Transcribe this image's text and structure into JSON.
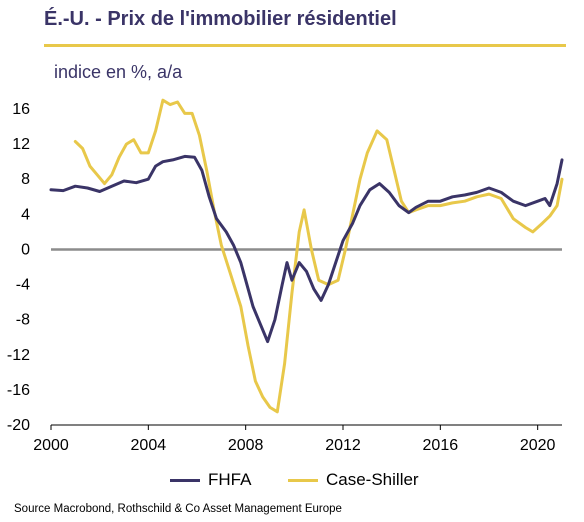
{
  "header": {
    "title": "É.-U. - Prix de l'immobilier résidentiel",
    "subtitle": "indice en %, a/a"
  },
  "source": "Source Macrobond, Rothschild & Co Asset Management Europe",
  "colors": {
    "fhfa": "#3a3467",
    "case_shiller": "#e8c84a",
    "zero_line": "#8c8c8c",
    "rule": "#e8c84a"
  },
  "chart_data": {
    "type": "line",
    "title": "É.-U. - Prix de l'immobilier résidentiel",
    "ylabel": "indice en %, a/a",
    "xlim": [
      2000,
      2021
    ],
    "ylim": [
      -20,
      16
    ],
    "xticks": [
      2000,
      2004,
      2008,
      2012,
      2016,
      2020
    ],
    "yticks": [
      16,
      12,
      8,
      4,
      0,
      -4,
      -8,
      -12,
      -16,
      -20
    ],
    "x_tick_labels": [
      "2000",
      "2004",
      "2008",
      "2012",
      "2016",
      "2020"
    ],
    "y_tick_labels": [
      "16",
      "12",
      "8",
      "4",
      "0",
      "-4",
      "-8",
      "-12",
      "-16",
      "-20"
    ],
    "grid": false,
    "legend_position": "bottom",
    "series": [
      {
        "name": "FHFA",
        "points": [
          [
            2000.0,
            6.8
          ],
          [
            2000.5,
            6.7
          ],
          [
            2001.0,
            7.2
          ],
          [
            2001.5,
            7.0
          ],
          [
            2002.0,
            6.6
          ],
          [
            2002.5,
            7.2
          ],
          [
            2003.0,
            7.8
          ],
          [
            2003.5,
            7.6
          ],
          [
            2004.0,
            8.0
          ],
          [
            2004.3,
            9.5
          ],
          [
            2004.6,
            10.0
          ],
          [
            2005.0,
            10.2
          ],
          [
            2005.5,
            10.6
          ],
          [
            2005.9,
            10.5
          ],
          [
            2006.2,
            9.0
          ],
          [
            2006.5,
            6.0
          ],
          [
            2006.8,
            3.5
          ],
          [
            2007.2,
            2.0
          ],
          [
            2007.5,
            0.5
          ],
          [
            2007.8,
            -1.5
          ],
          [
            2008.0,
            -3.5
          ],
          [
            2008.3,
            -6.5
          ],
          [
            2008.6,
            -8.5
          ],
          [
            2008.9,
            -10.5
          ],
          [
            2009.2,
            -8.0
          ],
          [
            2009.5,
            -4.0
          ],
          [
            2009.7,
            -1.5
          ],
          [
            2009.9,
            -3.5
          ],
          [
            2010.2,
            -1.5
          ],
          [
            2010.5,
            -2.5
          ],
          [
            2010.8,
            -4.5
          ],
          [
            2011.1,
            -5.8
          ],
          [
            2011.4,
            -4.0
          ],
          [
            2011.7,
            -1.5
          ],
          [
            2012.0,
            1.0
          ],
          [
            2012.4,
            3.0
          ],
          [
            2012.7,
            5.0
          ],
          [
            2013.1,
            6.8
          ],
          [
            2013.5,
            7.5
          ],
          [
            2013.9,
            6.5
          ],
          [
            2014.3,
            5.0
          ],
          [
            2014.7,
            4.2
          ],
          [
            2015.0,
            4.8
          ],
          [
            2015.5,
            5.5
          ],
          [
            2016.0,
            5.5
          ],
          [
            2016.5,
            6.0
          ],
          [
            2017.0,
            6.2
          ],
          [
            2017.5,
            6.5
          ],
          [
            2018.0,
            7.0
          ],
          [
            2018.5,
            6.5
          ],
          [
            2019.0,
            5.5
          ],
          [
            2019.5,
            5.0
          ],
          [
            2020.0,
            5.5
          ],
          [
            2020.3,
            5.8
          ],
          [
            2020.5,
            5.0
          ],
          [
            2020.8,
            7.5
          ],
          [
            2021.0,
            10.2
          ]
        ]
      },
      {
        "name": "Case-Shiller",
        "points": [
          [
            2001.0,
            12.3
          ],
          [
            2001.3,
            11.5
          ],
          [
            2001.6,
            9.5
          ],
          [
            2001.9,
            8.5
          ],
          [
            2002.2,
            7.5
          ],
          [
            2002.5,
            8.5
          ],
          [
            2002.8,
            10.5
          ],
          [
            2003.1,
            12.0
          ],
          [
            2003.4,
            12.5
          ],
          [
            2003.7,
            11.0
          ],
          [
            2004.0,
            11.0
          ],
          [
            2004.3,
            13.5
          ],
          [
            2004.6,
            17.0
          ],
          [
            2004.9,
            16.5
          ],
          [
            2005.2,
            16.8
          ],
          [
            2005.5,
            15.5
          ],
          [
            2005.8,
            15.5
          ],
          [
            2006.1,
            13.0
          ],
          [
            2006.4,
            9.0
          ],
          [
            2006.7,
            4.5
          ],
          [
            2007.0,
            0.5
          ],
          [
            2007.4,
            -3.0
          ],
          [
            2007.8,
            -6.5
          ],
          [
            2008.1,
            -11.0
          ],
          [
            2008.4,
            -15.0
          ],
          [
            2008.7,
            -16.8
          ],
          [
            2009.0,
            -18.0
          ],
          [
            2009.3,
            -18.5
          ],
          [
            2009.6,
            -13.0
          ],
          [
            2009.9,
            -5.0
          ],
          [
            2010.2,
            2.0
          ],
          [
            2010.4,
            4.5
          ],
          [
            2010.7,
            0.0
          ],
          [
            2011.0,
            -3.5
          ],
          [
            2011.4,
            -4.0
          ],
          [
            2011.8,
            -3.5
          ],
          [
            2012.1,
            0.0
          ],
          [
            2012.4,
            4.0
          ],
          [
            2012.7,
            8.0
          ],
          [
            2013.0,
            11.0
          ],
          [
            2013.4,
            13.5
          ],
          [
            2013.8,
            12.5
          ],
          [
            2014.1,
            9.0
          ],
          [
            2014.4,
            5.5
          ],
          [
            2014.7,
            4.2
          ],
          [
            2015.0,
            4.5
          ],
          [
            2015.5,
            5.0
          ],
          [
            2016.0,
            5.0
          ],
          [
            2016.5,
            5.3
          ],
          [
            2017.0,
            5.5
          ],
          [
            2017.5,
            6.0
          ],
          [
            2018.0,
            6.3
          ],
          [
            2018.5,
            5.8
          ],
          [
            2019.0,
            3.5
          ],
          [
            2019.5,
            2.5
          ],
          [
            2019.8,
            2.0
          ],
          [
            2020.2,
            3.0
          ],
          [
            2020.5,
            3.8
          ],
          [
            2020.8,
            5.0
          ],
          [
            2021.0,
            8.0
          ]
        ]
      }
    ]
  }
}
